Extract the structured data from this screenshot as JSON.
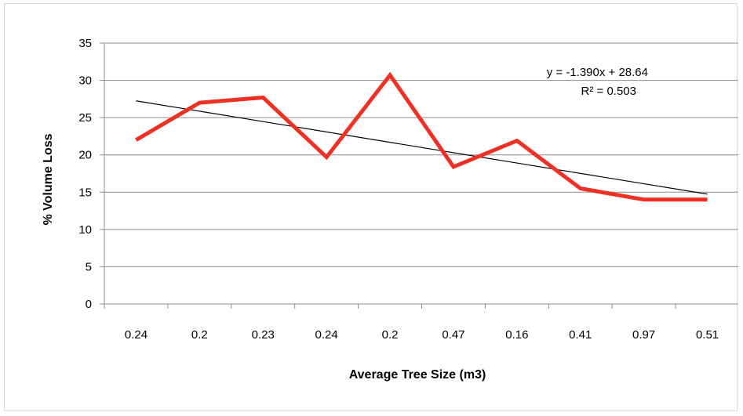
{
  "chart_data": {
    "type": "line",
    "categories": [
      "0.24",
      "0.2",
      "0.23",
      "0.24",
      "0.2",
      "0.47",
      "0.16",
      "0.41",
      "0.97",
      "0.51"
    ],
    "series": [
      {
        "values": [
          22,
          27,
          27.7,
          19.7,
          30.7,
          18.4,
          21.9,
          15.5,
          14,
          14
        ],
        "color": "#ee3124"
      }
    ],
    "trendline": {
      "type": "linear",
      "slope": -1.39,
      "intercept": 28.64,
      "color": "#000000"
    },
    "trend_equation": "y = -1.390x + 28.64",
    "trend_r2": "R² = 0.503",
    "xlabel": "Average Tree Size (m3)",
    "ylabel": "% Volume Loss",
    "ylim": [
      0,
      35
    ],
    "yticks": [
      "0",
      "5",
      "10",
      "15",
      "20",
      "25",
      "30",
      "35"
    ],
    "grid": "horizontal",
    "legend": "none"
  }
}
